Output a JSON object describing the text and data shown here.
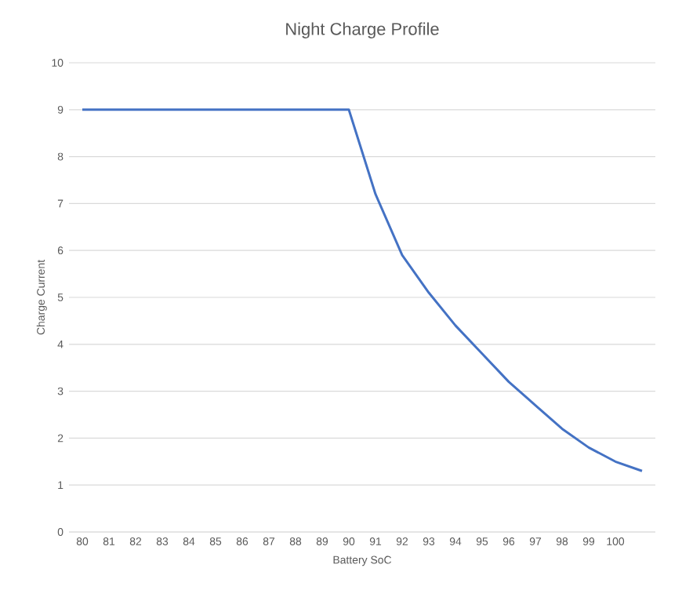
{
  "chart_data": {
    "type": "line",
    "title": "Night Charge Profile",
    "xlabel": "Battery SoC",
    "ylabel": "Charge Current",
    "categories": [
      "80",
      "81",
      "82",
      "83",
      "84",
      "85",
      "86",
      "87",
      "88",
      "89",
      "90",
      "91",
      "92",
      "93",
      "94",
      "95",
      "96",
      "97",
      "98",
      "99",
      "100",
      null
    ],
    "series": [
      {
        "color": "#4472c4",
        "values": [
          9,
          9,
          9,
          9,
          9,
          9,
          9,
          9,
          9,
          9,
          9,
          7.2,
          5.9,
          5.1,
          4.4,
          3.8,
          3.2,
          2.7,
          2.2,
          1.8,
          1.5,
          1.3
        ]
      }
    ],
    "ylim": [
      0,
      10
    ],
    "yticks": [
      0,
      1,
      2,
      3,
      4,
      5,
      6,
      7,
      8,
      9,
      10
    ],
    "grid": "y",
    "legend": false,
    "marker": "none",
    "line_style": "solid"
  }
}
